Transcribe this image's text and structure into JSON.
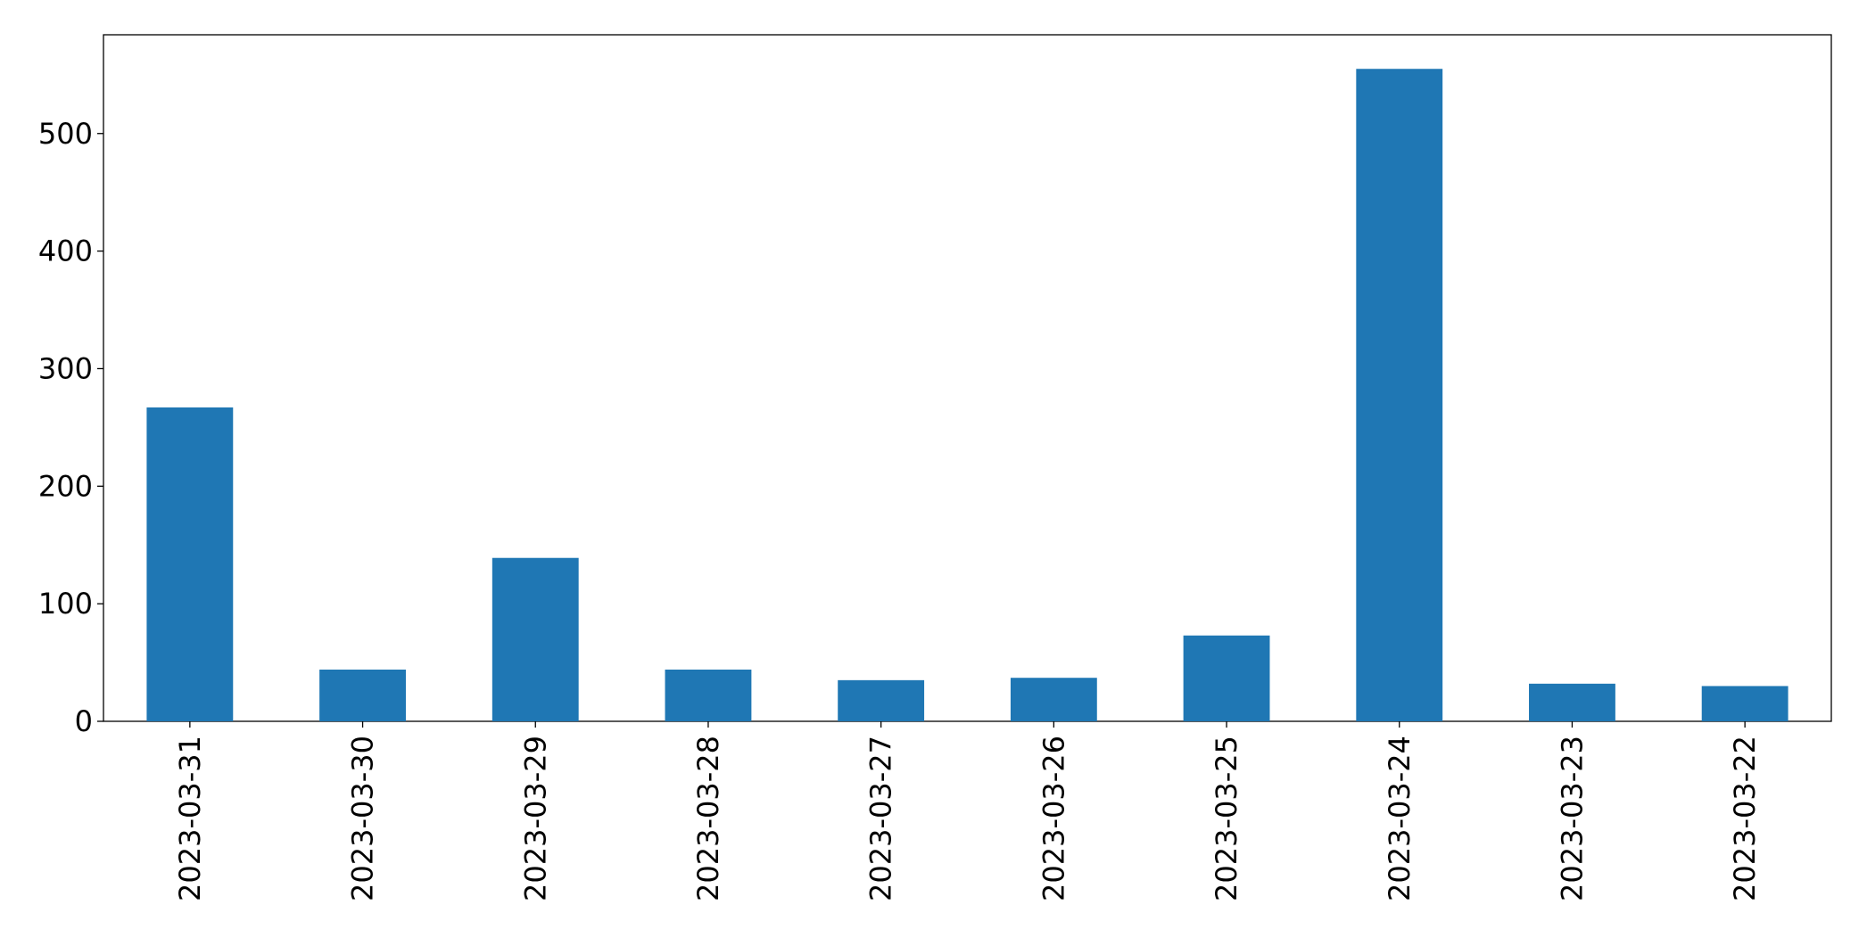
{
  "chart_data": {
    "type": "bar",
    "categories": [
      "2023-03-31",
      "2023-03-30",
      "2023-03-29",
      "2023-03-28",
      "2023-03-27",
      "2023-03-26",
      "2023-03-25",
      "2023-03-24",
      "2023-03-23",
      "2023-03-22"
    ],
    "values": [
      267,
      44,
      139,
      44,
      35,
      37,
      73,
      555,
      32,
      30
    ],
    "color": "#1f77b4",
    "ylim": [
      0,
      584
    ],
    "yticks": [
      0,
      100,
      200,
      300,
      400,
      500
    ],
    "grid": false
  }
}
